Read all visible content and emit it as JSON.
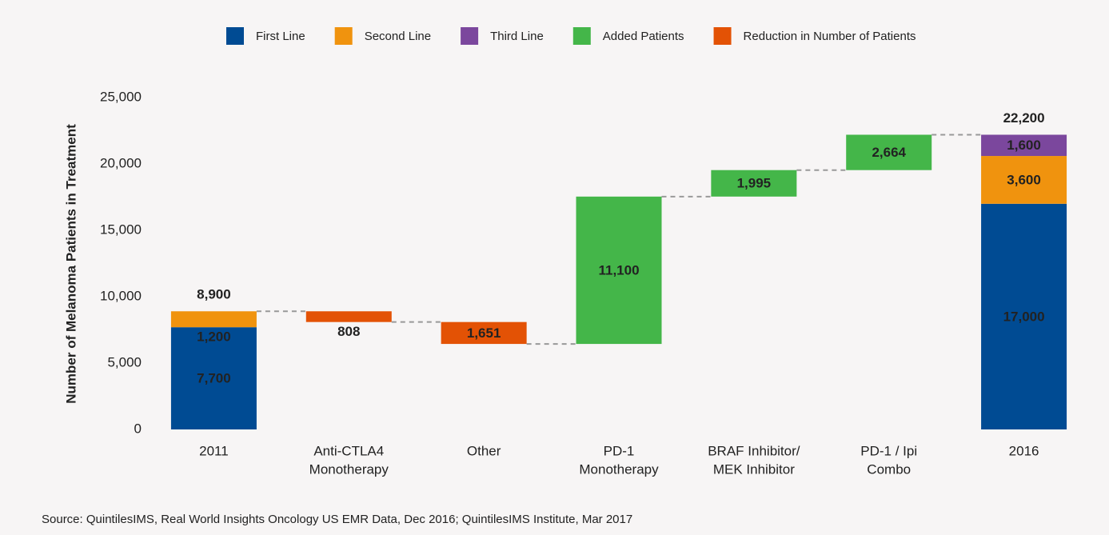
{
  "chart_data": {
    "type": "waterfall",
    "y_label": "Number of Melanoma Patients in Treatment",
    "source": "Source: QuintilesIMS, Real World Insights Oncology US EMR Data, Dec 2016; QuintilesIMS Institute, Mar 2017",
    "categories": [
      [
        "2011"
      ],
      [
        "Anti-CTLA4",
        "Monotherapy"
      ],
      [
        "Other"
      ],
      [
        "PD-1",
        "Monotherapy"
      ],
      [
        "BRAF Inhibitor/",
        "MEK Inhibitor"
      ],
      [
        "PD-1 / Ipi",
        "Combo"
      ],
      [
        "2016"
      ]
    ],
    "series": [
      {
        "name": "First Line",
        "color": "#004b93",
        "role": "total",
        "values": [
          7700,
          null,
          null,
          null,
          null,
          null,
          17000
        ],
        "value_labels": [
          "7,700",
          null,
          null,
          null,
          null,
          null,
          "17,000"
        ]
      },
      {
        "name": "Second Line",
        "color": "#f0930e",
        "role": "total",
        "values": [
          1200,
          null,
          null,
          null,
          null,
          null,
          3600
        ],
        "value_labels": [
          "1,200",
          null,
          null,
          null,
          null,
          null,
          "3,600"
        ]
      },
      {
        "name": "Third Line",
        "color": "#7b479d",
        "role": "total",
        "values": [
          null,
          null,
          null,
          null,
          null,
          null,
          1600
        ],
        "value_labels": [
          null,
          null,
          null,
          null,
          null,
          null,
          "1,600"
        ]
      },
      {
        "name": "Added Patients",
        "color": "#44b649",
        "role": "increase",
        "values": [
          null,
          null,
          null,
          11100,
          1995,
          2664,
          null
        ],
        "value_labels": [
          null,
          null,
          null,
          "11,100",
          "1,995",
          "2,664",
          null
        ]
      },
      {
        "name": "Reduction in Number of Patients",
        "color": "#e35205",
        "role": "decrease",
        "values": [
          null,
          808,
          1651,
          null,
          null,
          null,
          null
        ],
        "value_labels": [
          null,
          "808",
          "1,651",
          null,
          null,
          null,
          null
        ]
      }
    ],
    "totals": {
      "values": [
        8900,
        null,
        null,
        null,
        null,
        null,
        22200
      ],
      "value_labels": [
        "8,900",
        null,
        null,
        null,
        null,
        null,
        "22,200"
      ]
    },
    "ylim": [
      0,
      25000
    ],
    "yticks": [
      0,
      {
        "value": 5000,
        "label": "5,000"
      },
      {
        "value": 10000,
        "label": "10,000"
      },
      {
        "value": 15000,
        "label": "15,000"
      },
      {
        "value": 20000,
        "label": "20,000"
      },
      {
        "value": 25000,
        "label": "25,000"
      }
    ]
  }
}
